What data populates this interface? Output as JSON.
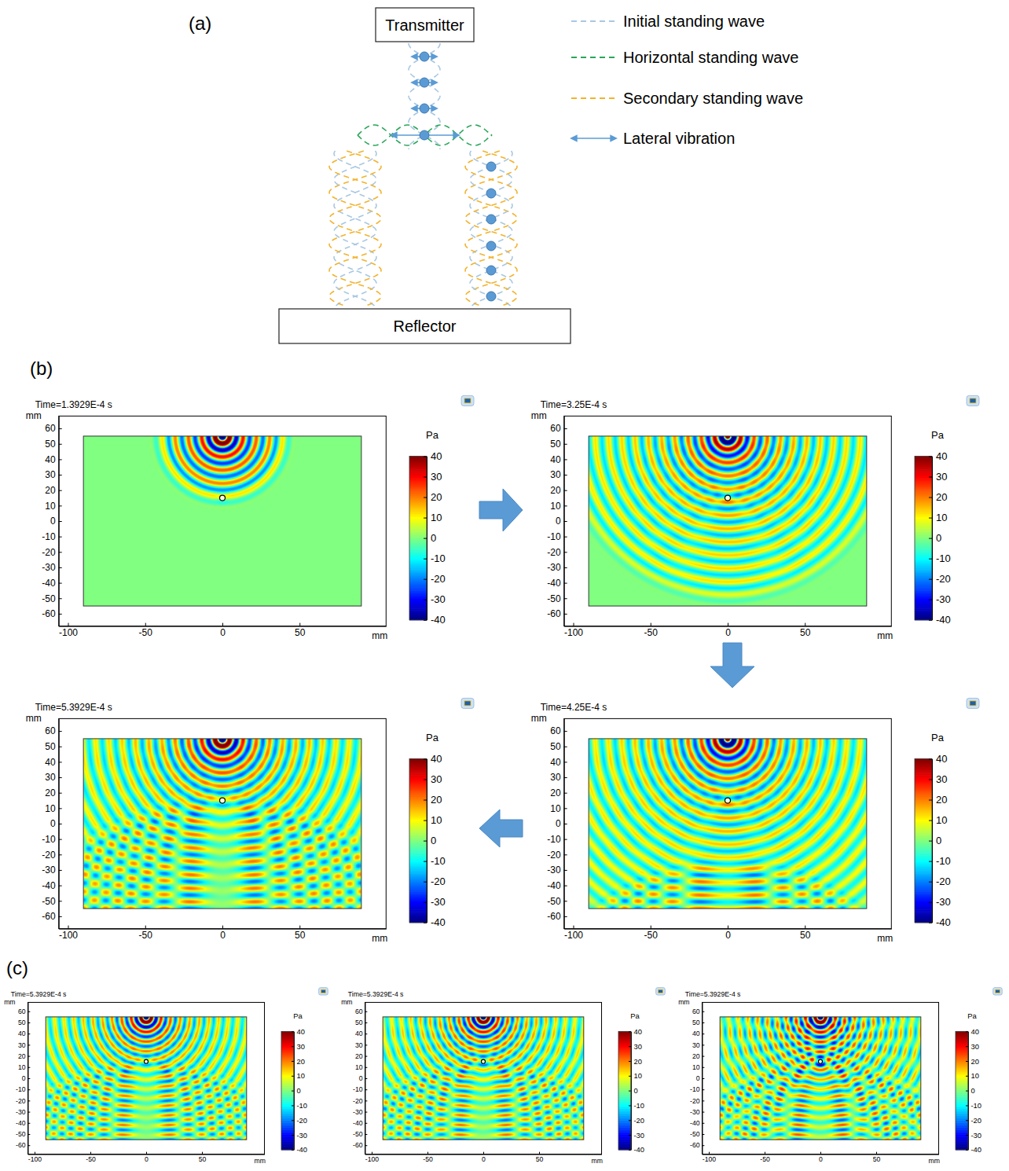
{
  "panel_labels": [
    "(a)",
    "(b)",
    "(c)"
  ],
  "diagram": {
    "transmitter": "Transmitter",
    "reflector": "Reflector",
    "legend": [
      {
        "label": "Initial standing wave",
        "color": "#a9c8e2",
        "line_style": "dashed"
      },
      {
        "label": "Horizontal standing wave",
        "color": "#2aa65a",
        "line_style": "dashed"
      },
      {
        "label": "Secondary standing wave",
        "color": "#f2b32e",
        "line_style": "dashed"
      },
      {
        "label": "Lateral vibration",
        "color": "#5b9bd5",
        "line_style": "arrow"
      }
    ]
  },
  "chart_data": [
    {
      "type": "heatmap",
      "title": "Time=1.3929E-4 s",
      "time": 0.00013929,
      "xlabel": "mm",
      "ylabel": "mm",
      "xlim": [
        -106,
        106
      ],
      "ylim": [
        -68,
        68
      ],
      "xticks": [
        -100,
        -50,
        0,
        50
      ],
      "yticks": [
        -60,
        -50,
        -40,
        -30,
        -20,
        -10,
        0,
        10,
        20,
        30,
        40,
        50,
        60
      ],
      "domain": {
        "x": [
          -90,
          90
        ],
        "y": [
          -55,
          55
        ]
      },
      "source": [
        0,
        55
      ],
      "particle": [
        0,
        15
      ],
      "colorbar": {
        "label": "Pa",
        "range": [
          -40,
          40
        ],
        "ticks": [
          -40,
          -30,
          -20,
          -10,
          0,
          10,
          20,
          30,
          40
        ]
      }
    },
    {
      "type": "heatmap",
      "title": "Time=3.25E-4 s",
      "time": 0.000325,
      "xlabel": "mm",
      "ylabel": "mm",
      "xlim": [
        -106,
        106
      ],
      "ylim": [
        -68,
        68
      ],
      "xticks": [
        -100,
        -50,
        0,
        50
      ],
      "yticks": [
        -60,
        -50,
        -40,
        -30,
        -20,
        -10,
        0,
        10,
        20,
        30,
        40,
        50,
        60
      ],
      "domain": {
        "x": [
          -90,
          90
        ],
        "y": [
          -55,
          55
        ]
      },
      "source": [
        0,
        55
      ],
      "particle": [
        0,
        15
      ],
      "colorbar": {
        "label": "Pa",
        "range": [
          -40,
          40
        ],
        "ticks": [
          -40,
          -30,
          -20,
          -10,
          0,
          10,
          20,
          30,
          40
        ]
      }
    },
    {
      "type": "heatmap",
      "title": "Time=4.25E-4 s",
      "time": 0.000425,
      "xlabel": "mm",
      "ylabel": "mm",
      "xlim": [
        -106,
        106
      ],
      "ylim": [
        -68,
        68
      ],
      "xticks": [
        -100,
        -50,
        0,
        50
      ],
      "yticks": [
        -60,
        -50,
        -40,
        -30,
        -20,
        -10,
        0,
        10,
        20,
        30,
        40,
        50,
        60
      ],
      "domain": {
        "x": [
          -90,
          90
        ],
        "y": [
          -55,
          55
        ]
      },
      "source": [
        0,
        55
      ],
      "particle": [
        0,
        15
      ],
      "colorbar": {
        "label": "Pa",
        "range": [
          -40,
          40
        ],
        "ticks": [
          -40,
          -30,
          -20,
          -10,
          0,
          10,
          20,
          30,
          40
        ]
      }
    },
    {
      "type": "heatmap",
      "title": "Time=5.3929E-4 s",
      "time": 0.00053929,
      "xlabel": "mm",
      "ylabel": "mm",
      "xlim": [
        -106,
        106
      ],
      "ylim": [
        -68,
        68
      ],
      "xticks": [
        -100,
        -50,
        0,
        50
      ],
      "yticks": [
        -60,
        -50,
        -40,
        -30,
        -20,
        -10,
        0,
        10,
        20,
        30,
        40,
        50,
        60
      ],
      "domain": {
        "x": [
          -90,
          90
        ],
        "y": [
          -55,
          55
        ]
      },
      "source": [
        0,
        55
      ],
      "particle": [
        0,
        15
      ],
      "colorbar": {
        "label": "Pa",
        "range": [
          -40,
          40
        ],
        "ticks": [
          -40,
          -30,
          -20,
          -10,
          0,
          10,
          20,
          30,
          40
        ]
      }
    },
    {
      "type": "heatmap",
      "title": "Time=5.3929E-4 s",
      "time": 0.00053929,
      "xlabel": "mm",
      "ylabel": "mm",
      "xlim": [
        -106,
        106
      ],
      "ylim": [
        -68,
        68
      ],
      "xticks": [
        -100,
        -50,
        0,
        50
      ],
      "yticks": [
        -60,
        -50,
        -40,
        -30,
        -20,
        -10,
        0,
        10,
        20,
        30,
        40,
        50,
        60
      ],
      "domain": {
        "x": [
          -90,
          90
        ],
        "y": [
          -55,
          55
        ]
      },
      "source": [
        0,
        55
      ],
      "particle": [
        0,
        15
      ],
      "colorbar": {
        "label": "Pa",
        "range": [
          -40,
          40
        ],
        "ticks": [
          -40,
          -30,
          -20,
          -10,
          0,
          10,
          20,
          30,
          40
        ]
      }
    },
    {
      "type": "heatmap",
      "title": "Time=5.3929E-4 s",
      "time": 0.00053929,
      "xlabel": "mm",
      "ylabel": "mm",
      "xlim": [
        -106,
        106
      ],
      "ylim": [
        -68,
        68
      ],
      "xticks": [
        -100,
        -50,
        0,
        50
      ],
      "yticks": [
        -60,
        -50,
        -40,
        -30,
        -20,
        -10,
        0,
        10,
        20,
        30,
        40,
        50,
        60
      ],
      "domain": {
        "x": [
          -90,
          90
        ],
        "y": [
          -55,
          55
        ]
      },
      "source": [
        0,
        55
      ],
      "particle": [
        0,
        15
      ],
      "colorbar": {
        "label": "Pa",
        "range": [
          -40,
          40
        ],
        "ticks": [
          -40,
          -30,
          -20,
          -10,
          0,
          10,
          20,
          30,
          40
        ]
      }
    },
    {
      "type": "heatmap",
      "title": "Time=5.3929E-4 s",
      "time": 0.00053929,
      "xlabel": "mm",
      "ylabel": "mm",
      "xlim": [
        -106,
        106
      ],
      "ylim": [
        -68,
        68
      ],
      "xticks": [
        -100,
        -50,
        0,
        50
      ],
      "yticks": [
        -60,
        -50,
        -40,
        -30,
        -20,
        -10,
        0,
        10,
        20,
        30,
        40,
        50,
        60
      ],
      "domain": {
        "x": [
          -90,
          90
        ],
        "y": [
          -55,
          55
        ]
      },
      "source": [
        0,
        55
      ],
      "particle": [
        0,
        15
      ],
      "colorbar": {
        "label": "Pa",
        "range": [
          -40,
          40
        ],
        "ticks": [
          -40,
          -30,
          -20,
          -10,
          0,
          10,
          20,
          30,
          40
        ]
      }
    }
  ]
}
